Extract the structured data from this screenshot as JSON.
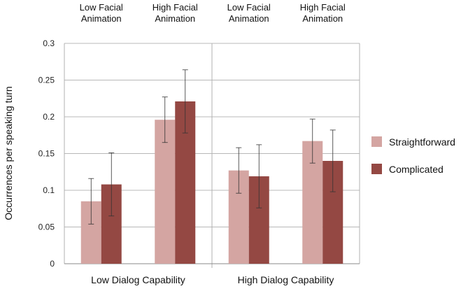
{
  "chart_data": {
    "type": "bar",
    "title": "",
    "xlabel": "",
    "ylabel": "Occurrences per speaking turn",
    "ylim": [
      0,
      0.3
    ],
    "yticks": [
      "0",
      "0.05",
      "0.1",
      "0.15",
      "0.2",
      "0.25",
      "0.3"
    ],
    "grid": true,
    "legend_position": "right",
    "groups": [
      {
        "label": "Low Dialog Capability",
        "subgroups": [
          {
            "label_line1": "Low Facial",
            "label_line2": "Animation"
          },
          {
            "label_line1": "High Facial",
            "label_line2": "Animation"
          }
        ]
      },
      {
        "label": "High Dialog Capability",
        "subgroups": [
          {
            "label_line1": "Low Facial",
            "label_line2": "Animation"
          },
          {
            "label_line1": "High Facial",
            "label_line2": "Animation"
          }
        ]
      }
    ],
    "series": [
      {
        "name": "Straightforward",
        "color": "#d4a5a2",
        "values": [
          0.085,
          0.196,
          0.127,
          0.167
        ],
        "error": [
          0.031,
          0.031,
          0.031,
          0.03
        ]
      },
      {
        "name": "Complicated",
        "color": "#944843",
        "values": [
          0.108,
          0.221,
          0.119,
          0.14
        ],
        "error": [
          0.043,
          0.043,
          0.043,
          0.042
        ]
      }
    ]
  }
}
